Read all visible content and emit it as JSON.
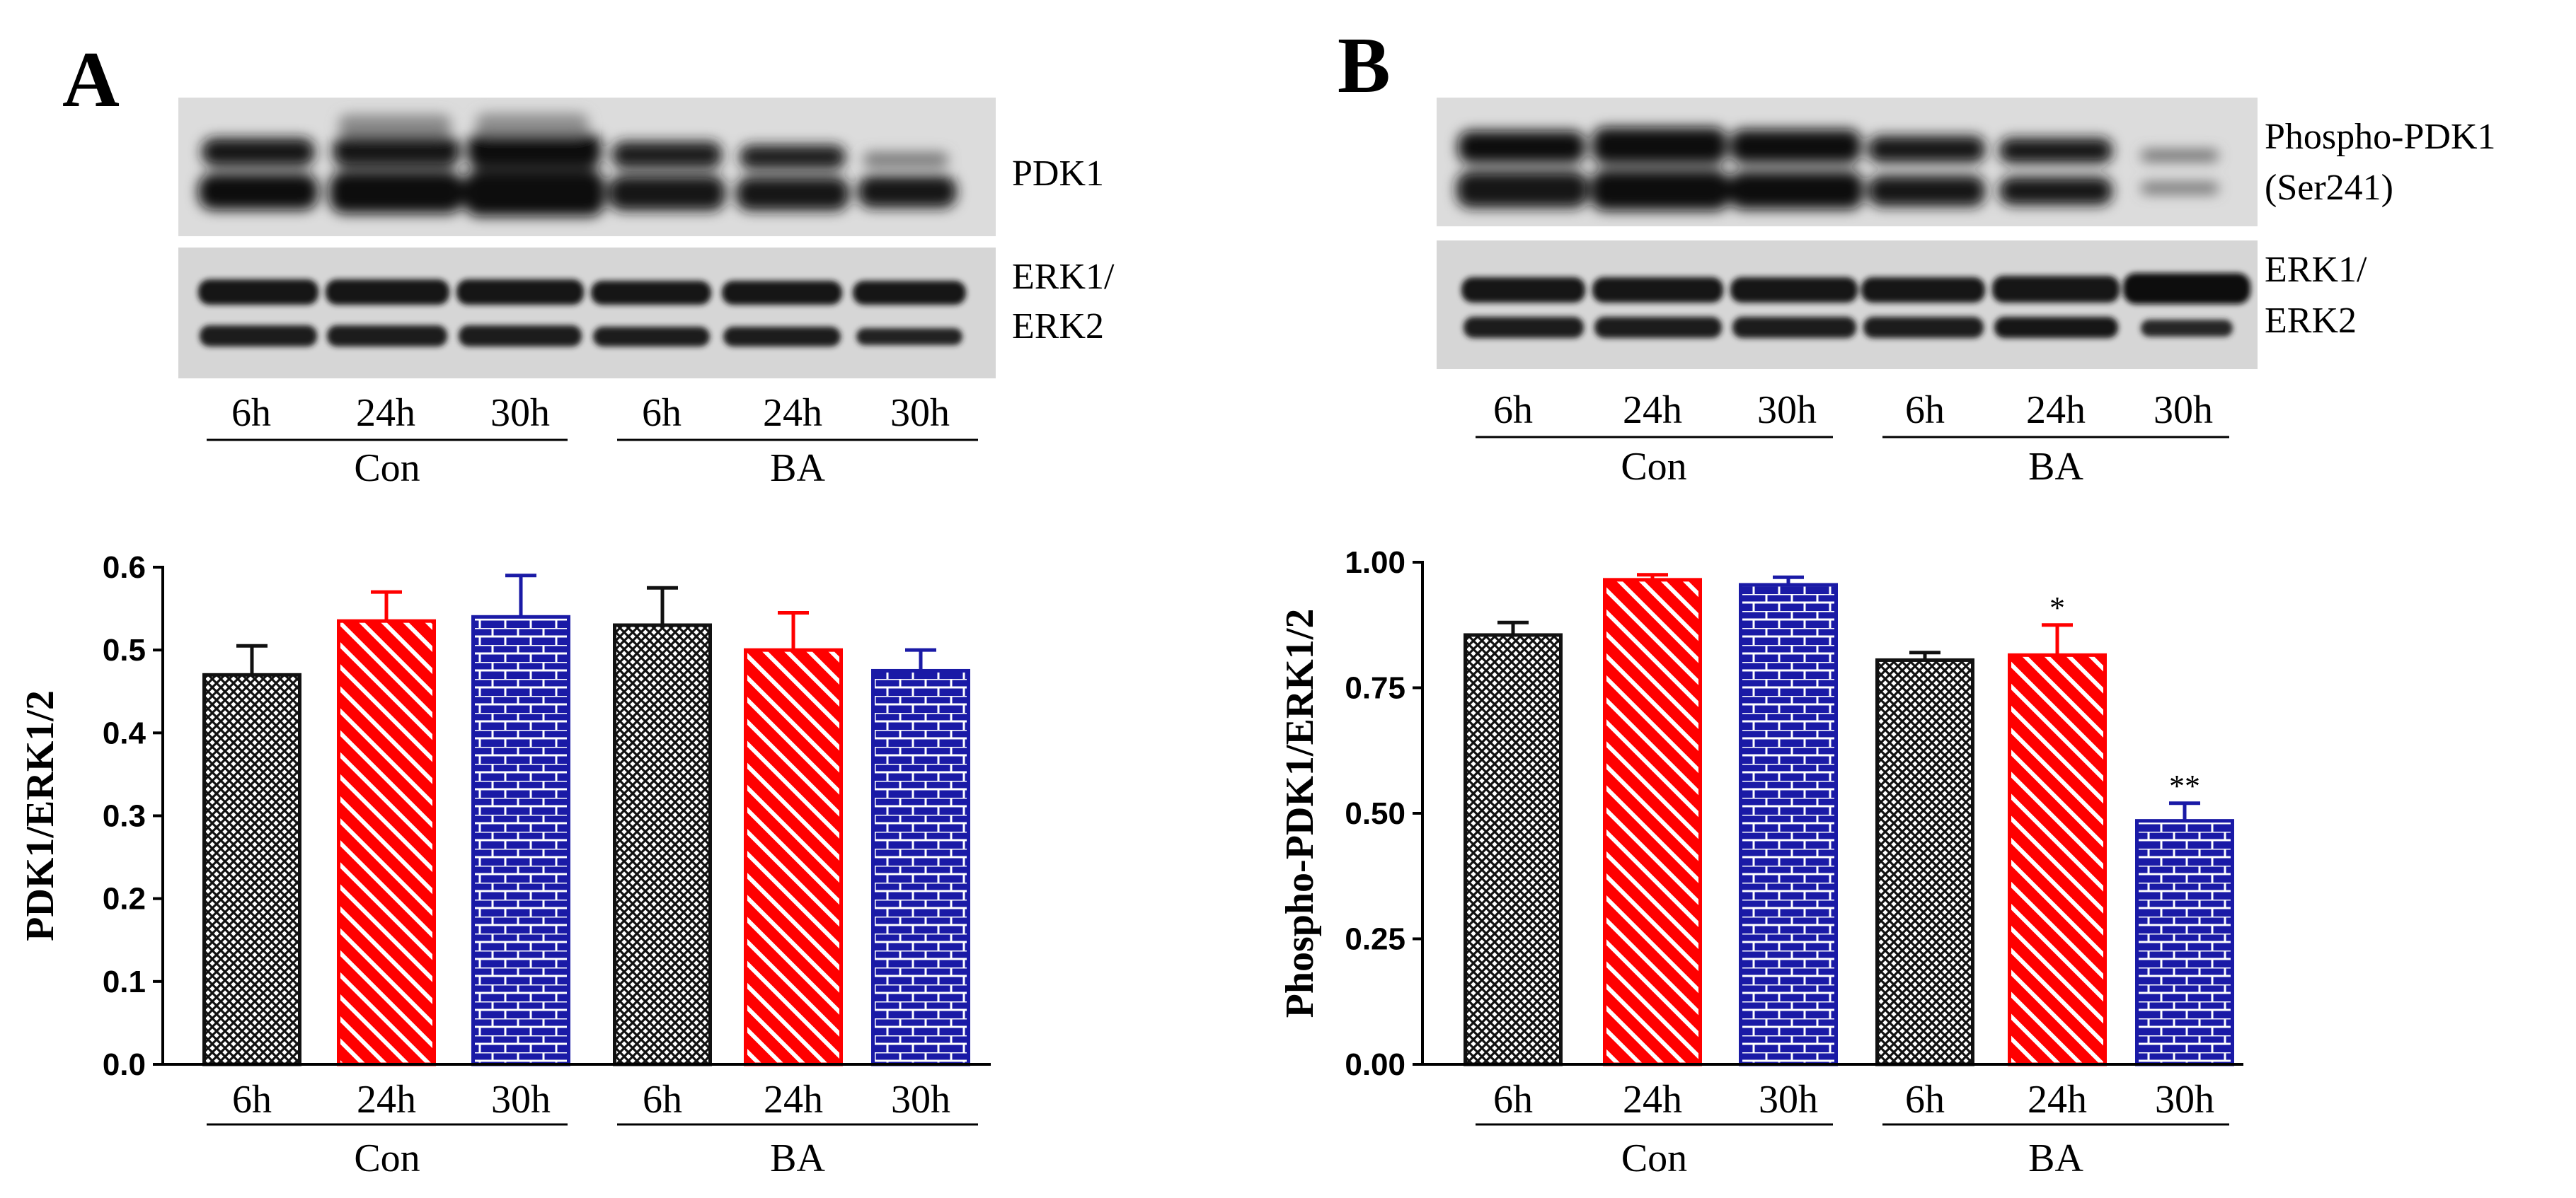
{
  "colors": {
    "black_series": "#111111",
    "red_series": "#ff0000",
    "blue_series": "#1a1aa6",
    "band_dark": "#141414",
    "blot_bg": "#d9d9d9"
  },
  "icons": [
    "western-blot-image"
  ],
  "panels": [
    {
      "letter": "A",
      "blot_labels": {
        "top": [
          "PDK1"
        ],
        "bottom": [
          "ERK1/",
          "ERK2"
        ]
      },
      "blot_lanes": [
        "6h",
        "24h",
        "30h",
        "6h",
        "24h",
        "30h"
      ],
      "blot_groups": [
        "Con",
        "BA"
      ]
    },
    {
      "letter": "B",
      "blot_labels": {
        "top": [
          "Phospho-PDK1",
          "(Ser241)"
        ],
        "bottom": [
          "ERK1/",
          "ERK2"
        ]
      },
      "blot_lanes": [
        "6h",
        "24h",
        "30h",
        "6h",
        "24h",
        "30h"
      ],
      "blot_groups": [
        "Con",
        "BA"
      ]
    }
  ],
  "chart_data": [
    {
      "type": "bar",
      "panel": "A",
      "categories": [
        "6h",
        "24h",
        "30h",
        "6h",
        "24h",
        "30h"
      ],
      "groups": [
        {
          "label": "Con",
          "categories": [
            "6h",
            "24h",
            "30h"
          ]
        },
        {
          "label": "BA",
          "categories": [
            "6h",
            "24h",
            "30h"
          ]
        }
      ],
      "values": [
        0.47,
        0.535,
        0.54,
        0.53,
        0.5,
        0.475
      ],
      "errors": [
        0.035,
        0.035,
        0.05,
        0.045,
        0.045,
        0.025
      ],
      "bar_colors": [
        "black_series",
        "red_series",
        "blue_series",
        "black_series",
        "red_series",
        "blue_series"
      ],
      "patterns": [
        "crosshatch",
        "diagonal",
        "brick",
        "crosshatch",
        "diagonal",
        "brick"
      ],
      "annotations": [
        "",
        "",
        "",
        "",
        "",
        ""
      ],
      "ylabel": "PDK1/ERK1/2",
      "xlabel": "",
      "ylim": [
        0,
        0.6
      ],
      "yticks": [
        0.0,
        0.1,
        0.2,
        0.3,
        0.4,
        0.5,
        0.6
      ],
      "ytick_labels": [
        "0.0",
        "0.1",
        "0.2",
        "0.3",
        "0.4",
        "0.5",
        "0.6"
      ]
    },
    {
      "type": "bar",
      "panel": "B",
      "categories": [
        "6h",
        "24h",
        "30h",
        "6h",
        "24h",
        "30h"
      ],
      "groups": [
        {
          "label": "Con",
          "categories": [
            "6h",
            "24h",
            "30h"
          ]
        },
        {
          "label": "BA",
          "categories": [
            "6h",
            "24h",
            "30h"
          ]
        }
      ],
      "values": [
        0.855,
        0.965,
        0.955,
        0.805,
        0.815,
        0.485
      ],
      "errors": [
        0.025,
        0.01,
        0.015,
        0.015,
        0.06,
        0.035
      ],
      "bar_colors": [
        "black_series",
        "red_series",
        "blue_series",
        "black_series",
        "red_series",
        "blue_series"
      ],
      "patterns": [
        "crosshatch",
        "diagonal",
        "brick",
        "crosshatch",
        "diagonal",
        "brick"
      ],
      "annotations": [
        "",
        "",
        "",
        "",
        "*",
        "**"
      ],
      "ylabel": "Phospho-PDK1/ERK1/2",
      "xlabel": "",
      "ylim": [
        0,
        1.0
      ],
      "yticks": [
        0.0,
        0.25,
        0.5,
        0.75,
        1.0
      ],
      "ytick_labels": [
        "0.00",
        "0.25",
        "0.50",
        "0.75",
        "1.00"
      ]
    }
  ]
}
